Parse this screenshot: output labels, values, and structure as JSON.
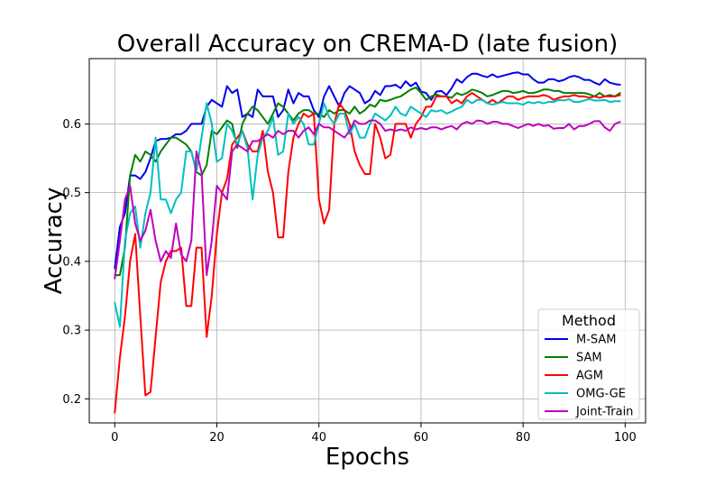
{
  "chart_data": {
    "type": "line",
    "title": "Overall Accuracy on CREMA-D (late fusion)",
    "xlabel": "Epochs",
    "ylabel": "Accuracy",
    "xlim": [
      -5,
      104
    ],
    "ylim": [
      0.165,
      0.695
    ],
    "xticks": [
      0,
      20,
      40,
      60,
      80,
      100
    ],
    "yticks": [
      0.2,
      0.3,
      0.4,
      0.5,
      0.6
    ],
    "xtick_labels": [
      "0",
      "20",
      "40",
      "60",
      "80",
      "100"
    ],
    "ytick_labels": [
      "0.2",
      "0.3",
      "0.4",
      "0.5",
      "0.6"
    ],
    "grid": true,
    "legend": {
      "title": "Method",
      "position": "lower-right"
    },
    "x": [
      0,
      1,
      2,
      3,
      4,
      5,
      6,
      7,
      8,
      9,
      10,
      11,
      12,
      13,
      14,
      15,
      16,
      17,
      18,
      19,
      20,
      21,
      22,
      23,
      24,
      25,
      26,
      27,
      28,
      29,
      30,
      31,
      32,
      33,
      34,
      35,
      36,
      37,
      38,
      39,
      40,
      41,
      42,
      43,
      44,
      45,
      46,
      47,
      48,
      49,
      50,
      51,
      52,
      53,
      54,
      55,
      56,
      57,
      58,
      59,
      60,
      61,
      62,
      63,
      64,
      65,
      66,
      67,
      68,
      69,
      70,
      71,
      72,
      73,
      74,
      75,
      76,
      77,
      78,
      79,
      80,
      81,
      82,
      83,
      84,
      85,
      86,
      87,
      88,
      89,
      90,
      91,
      92,
      93,
      94,
      95,
      96,
      97,
      98,
      99
    ],
    "series": [
      {
        "name": "M-SAM",
        "color": "#0000ee",
        "values": [
          0.39,
          0.45,
          0.47,
          0.525,
          0.525,
          0.52,
          0.53,
          0.55,
          0.575,
          0.578,
          0.578,
          0.58,
          0.585,
          0.585,
          0.59,
          0.6,
          0.6,
          0.6,
          0.625,
          0.635,
          0.63,
          0.625,
          0.655,
          0.645,
          0.65,
          0.61,
          0.615,
          0.61,
          0.65,
          0.64,
          0.64,
          0.64,
          0.61,
          0.62,
          0.65,
          0.63,
          0.645,
          0.64,
          0.64,
          0.62,
          0.61,
          0.64,
          0.655,
          0.64,
          0.625,
          0.645,
          0.655,
          0.65,
          0.645,
          0.63,
          0.635,
          0.648,
          0.642,
          0.655,
          0.655,
          0.657,
          0.652,
          0.662,
          0.655,
          0.66,
          0.647,
          0.645,
          0.635,
          0.647,
          0.648,
          0.642,
          0.652,
          0.665,
          0.66,
          0.668,
          0.673,
          0.673,
          0.67,
          0.668,
          0.672,
          0.668,
          0.67,
          0.672,
          0.674,
          0.675,
          0.672,
          0.672,
          0.665,
          0.66,
          0.66,
          0.665,
          0.665,
          0.662,
          0.664,
          0.668,
          0.67,
          0.668,
          0.664,
          0.664,
          0.66,
          0.657,
          0.665,
          0.66,
          0.658,
          0.657
        ]
      },
      {
        "name": "SAM",
        "color": "#008000",
        "values": [
          0.38,
          0.38,
          0.42,
          0.525,
          0.555,
          0.545,
          0.56,
          0.555,
          0.545,
          0.56,
          0.57,
          0.58,
          0.58,
          0.575,
          0.57,
          0.56,
          0.53,
          0.525,
          0.54,
          0.59,
          0.585,
          0.595,
          0.605,
          0.6,
          0.565,
          0.6,
          0.615,
          0.625,
          0.62,
          0.61,
          0.6,
          0.615,
          0.63,
          0.625,
          0.615,
          0.605,
          0.615,
          0.62,
          0.62,
          0.615,
          0.615,
          0.61,
          0.62,
          0.615,
          0.62,
          0.62,
          0.615,
          0.625,
          0.615,
          0.62,
          0.628,
          0.625,
          0.635,
          0.633,
          0.635,
          0.638,
          0.64,
          0.645,
          0.65,
          0.653,
          0.645,
          0.635,
          0.64,
          0.643,
          0.64,
          0.64,
          0.638,
          0.645,
          0.642,
          0.645,
          0.65,
          0.648,
          0.645,
          0.64,
          0.642,
          0.645,
          0.648,
          0.648,
          0.645,
          0.646,
          0.648,
          0.645,
          0.645,
          0.647,
          0.65,
          0.65,
          0.648,
          0.648,
          0.645,
          0.645,
          0.645,
          0.645,
          0.645,
          0.643,
          0.64,
          0.645,
          0.64,
          0.642,
          0.64,
          0.645
        ]
      },
      {
        "name": "AGM",
        "color": "#ff0000",
        "values": [
          0.18,
          0.26,
          0.32,
          0.4,
          0.44,
          0.32,
          0.205,
          0.21,
          0.29,
          0.37,
          0.4,
          0.415,
          0.415,
          0.42,
          0.335,
          0.335,
          0.42,
          0.42,
          0.29,
          0.35,
          0.44,
          0.5,
          0.52,
          0.57,
          0.58,
          0.59,
          0.57,
          0.56,
          0.56,
          0.59,
          0.53,
          0.5,
          0.435,
          0.435,
          0.53,
          0.58,
          0.6,
          0.615,
          0.61,
          0.615,
          0.49,
          0.455,
          0.475,
          0.6,
          0.63,
          0.62,
          0.6,
          0.56,
          0.54,
          0.527,
          0.527,
          0.6,
          0.58,
          0.55,
          0.555,
          0.6,
          0.6,
          0.6,
          0.58,
          0.6,
          0.61,
          0.625,
          0.625,
          0.64,
          0.64,
          0.64,
          0.63,
          0.635,
          0.63,
          0.64,
          0.645,
          0.64,
          0.635,
          0.63,
          0.635,
          0.63,
          0.635,
          0.64,
          0.64,
          0.635,
          0.638,
          0.64,
          0.64,
          0.64,
          0.642,
          0.64,
          0.635,
          0.638,
          0.64,
          0.64,
          0.642,
          0.64,
          0.64,
          0.638,
          0.64,
          0.638,
          0.64,
          0.64,
          0.64,
          0.642
        ]
      },
      {
        "name": "OMG-GE",
        "color": "#00bfbf",
        "values": [
          0.34,
          0.305,
          0.43,
          0.47,
          0.48,
          0.42,
          0.47,
          0.5,
          0.58,
          0.49,
          0.49,
          0.47,
          0.49,
          0.5,
          0.56,
          0.56,
          0.53,
          0.58,
          0.63,
          0.6,
          0.545,
          0.55,
          0.6,
          0.59,
          0.57,
          0.59,
          0.565,
          0.49,
          0.555,
          0.58,
          0.59,
          0.61,
          0.555,
          0.56,
          0.615,
          0.6,
          0.61,
          0.6,
          0.57,
          0.57,
          0.6,
          0.63,
          0.61,
          0.6,
          0.615,
          0.615,
          0.585,
          0.6,
          0.58,
          0.58,
          0.6,
          0.615,
          0.61,
          0.605,
          0.612,
          0.625,
          0.615,
          0.612,
          0.625,
          0.62,
          0.615,
          0.61,
          0.62,
          0.618,
          0.62,
          0.615,
          0.618,
          0.622,
          0.625,
          0.635,
          0.63,
          0.635,
          0.635,
          0.63,
          0.628,
          0.63,
          0.632,
          0.63,
          0.63,
          0.63,
          0.628,
          0.632,
          0.63,
          0.632,
          0.63,
          0.632,
          0.632,
          0.635,
          0.634,
          0.636,
          0.632,
          0.632,
          0.634,
          0.636,
          0.634,
          0.634,
          0.635,
          0.632,
          0.633,
          0.633
        ]
      },
      {
        "name": "Joint-Train",
        "color": "#bf00bf",
        "values": [
          0.375,
          0.43,
          0.49,
          0.51,
          0.455,
          0.43,
          0.445,
          0.475,
          0.43,
          0.4,
          0.415,
          0.405,
          0.455,
          0.41,
          0.4,
          0.43,
          0.56,
          0.53,
          0.38,
          0.43,
          0.51,
          0.5,
          0.49,
          0.56,
          0.57,
          0.565,
          0.56,
          0.575,
          0.575,
          0.58,
          0.585,
          0.58,
          0.59,
          0.585,
          0.59,
          0.59,
          0.58,
          0.59,
          0.595,
          0.585,
          0.6,
          0.595,
          0.595,
          0.59,
          0.585,
          0.58,
          0.59,
          0.605,
          0.6,
          0.6,
          0.605,
          0.605,
          0.6,
          0.59,
          0.592,
          0.59,
          0.592,
          0.59,
          0.595,
          0.592,
          0.594,
          0.592,
          0.595,
          0.595,
          0.592,
          0.595,
          0.597,
          0.592,
          0.6,
          0.603,
          0.6,
          0.605,
          0.604,
          0.6,
          0.603,
          0.603,
          0.6,
          0.6,
          0.597,
          0.594,
          0.597,
          0.6,
          0.597,
          0.6,
          0.597,
          0.598,
          0.593,
          0.594,
          0.594,
          0.6,
          0.592,
          0.597,
          0.597,
          0.6,
          0.604,
          0.604,
          0.595,
          0.59,
          0.6,
          0.603
        ]
      }
    ]
  }
}
